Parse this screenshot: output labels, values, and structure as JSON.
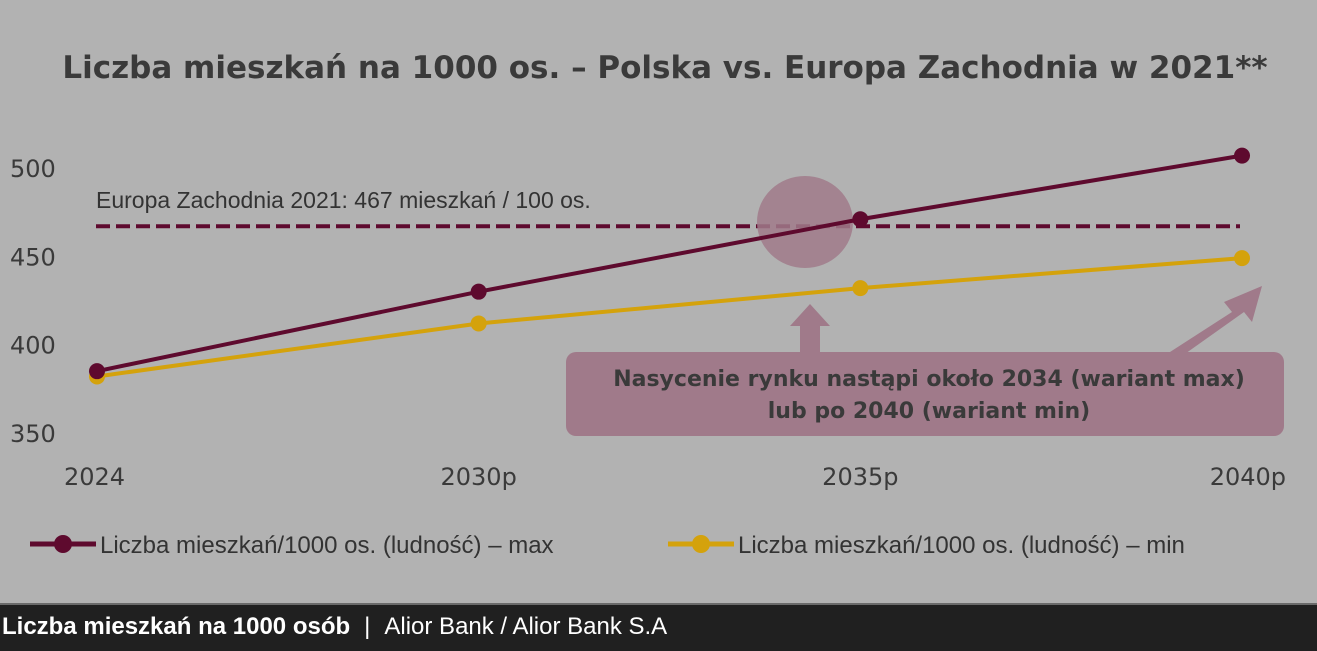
{
  "chart_data": {
    "type": "line",
    "title": "Liczba mieszkań na 1000 os. – Polska vs. Europa Zachodnia w 2021**",
    "categories": [
      "2024",
      "2030p",
      "2035p",
      "2040p"
    ],
    "yticks": [
      350,
      400,
      450,
      500
    ],
    "ylim": [
      350,
      500
    ],
    "series": [
      {
        "name": "Liczba mieszkań/1000 os. (ludność) – max",
        "color": "#5e0a2e",
        "values": [
          385,
          430,
          471,
          507
        ]
      },
      {
        "name": "Liczba mieszkań/1000 os. (ludność) – min",
        "color": "#d4a20c",
        "values": [
          382,
          412,
          432,
          449
        ]
      }
    ],
    "reference_line": {
      "value": 467,
      "label": "Europa Zachodnia 2021: 467 mieszkań / 100 os.",
      "color": "#5e0a2e"
    },
    "annotation": {
      "line1": "Nasycenie rynku nastąpi około 2034 (wariant max)",
      "line2": "lub po 2040 (wariant min)",
      "color": "#a07a8a"
    },
    "legend_position": "bottom"
  },
  "footer": {
    "title": "Liczba mieszkań na 1000 osób",
    "separator": "|",
    "source": "Alior Bank / Alior Bank S.A"
  }
}
